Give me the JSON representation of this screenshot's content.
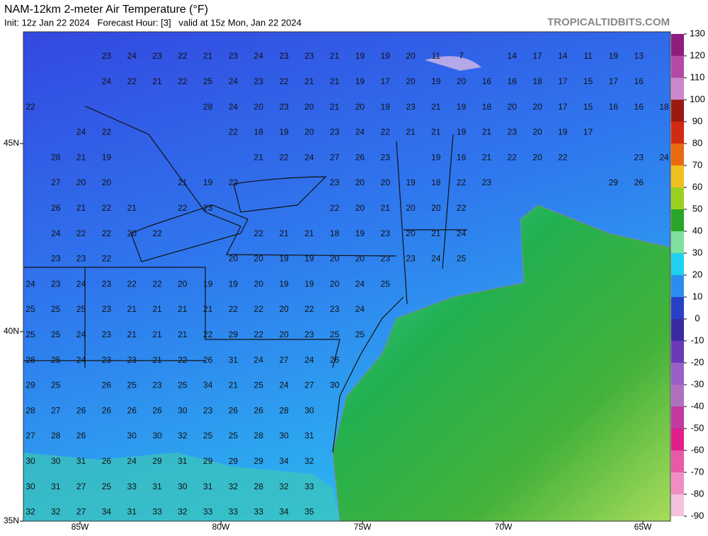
{
  "header": {
    "title": "NAM-12km 2-meter Air Temperature (°F)",
    "subtitle": "Init: 12z Jan 22 2024   Forecast Hour: [3]   valid at 15z Mon, Jan 22 2024",
    "site": "TROPICALTIDBITS.COM"
  },
  "map": {
    "lon_labels": [
      "85W",
      "80W",
      "75W",
      "70W",
      "65W"
    ],
    "lat_labels": [
      "45N",
      "40N",
      "35N"
    ],
    "rows": [
      [
        null,
        null,
        null,
        23,
        24,
        23,
        22,
        21,
        23,
        24,
        23,
        23,
        21,
        19,
        19,
        20,
        11,
        7,
        null,
        14,
        17,
        14,
        11,
        19,
        13,
        null
      ],
      [
        null,
        null,
        null,
        24,
        22,
        21,
        22,
        25,
        24,
        23,
        22,
        21,
        21,
        19,
        17,
        20,
        19,
        20,
        16,
        16,
        18,
        17,
        15,
        17,
        16,
        null
      ],
      [
        22,
        null,
        null,
        null,
        null,
        null,
        null,
        28,
        24,
        20,
        23,
        20,
        21,
        20,
        19,
        23,
        21,
        19,
        18,
        20,
        20,
        17,
        15,
        16,
        16,
        18
      ],
      [
        null,
        null,
        24,
        22,
        null,
        null,
        null,
        null,
        22,
        18,
        19,
        20,
        23,
        24,
        22,
        21,
        21,
        19,
        21,
        23,
        20,
        19,
        17,
        null,
        null,
        null
      ],
      [
        null,
        28,
        21,
        19,
        null,
        null,
        null,
        null,
        null,
        21,
        22,
        24,
        27,
        26,
        23,
        null,
        19,
        16,
        21,
        22,
        20,
        22,
        null,
        null,
        23,
        24
      ],
      [
        null,
        27,
        20,
        20,
        null,
        null,
        21,
        19,
        23,
        null,
        null,
        null,
        23,
        20,
        20,
        19,
        18,
        22,
        23,
        null,
        null,
        null,
        null,
        29,
        26,
        null
      ],
      [
        null,
        26,
        21,
        22,
        21,
        null,
        22,
        23,
        null,
        null,
        null,
        null,
        22,
        20,
        21,
        20,
        20,
        22,
        null,
        null,
        null,
        null,
        null,
        null,
        null,
        null
      ],
      [
        null,
        24,
        22,
        22,
        20,
        22,
        null,
        null,
        null,
        22,
        21,
        21,
        18,
        19,
        23,
        20,
        21,
        24,
        null,
        null,
        null,
        null,
        null,
        null,
        null,
        null
      ],
      [
        null,
        23,
        23,
        22,
        null,
        null,
        null,
        null,
        20,
        20,
        19,
        19,
        20,
        20,
        23,
        23,
        24,
        25,
        null,
        null,
        null,
        null,
        null,
        null,
        null,
        null
      ],
      [
        24,
        23,
        24,
        23,
        22,
        22,
        20,
        19,
        19,
        20,
        19,
        19,
        20,
        24,
        25,
        null,
        null,
        null,
        null,
        null,
        null,
        null,
        null,
        null,
        null,
        null
      ],
      [
        25,
        25,
        25,
        23,
        21,
        21,
        21,
        21,
        22,
        22,
        20,
        22,
        23,
        24,
        null,
        null,
        null,
        null,
        null,
        null,
        null,
        null,
        null,
        null,
        null,
        null
      ],
      [
        25,
        25,
        24,
        23,
        21,
        21,
        21,
        22,
        29,
        22,
        20,
        23,
        25,
        25,
        null,
        null,
        null,
        null,
        null,
        null,
        null,
        null,
        null,
        null,
        null,
        null
      ],
      [
        28,
        25,
        24,
        23,
        23,
        21,
        22,
        26,
        31,
        24,
        27,
        24,
        26,
        null,
        null,
        null,
        null,
        null,
        null,
        null,
        null,
        null,
        null,
        null,
        null,
        null
      ],
      [
        29,
        25,
        null,
        26,
        25,
        23,
        25,
        34,
        21,
        25,
        24,
        27,
        30,
        null,
        null,
        null,
        null,
        null,
        null,
        null,
        null,
        null,
        null,
        null,
        null,
        null
      ],
      [
        28,
        27,
        26,
        26,
        26,
        26,
        30,
        23,
        26,
        26,
        28,
        30,
        null,
        null,
        null,
        null,
        null,
        null,
        null,
        null,
        null,
        null,
        null,
        null,
        null,
        null
      ],
      [
        27,
        28,
        26,
        null,
        30,
        30,
        32,
        25,
        25,
        28,
        30,
        31,
        null,
        null,
        null,
        null,
        null,
        null,
        null,
        null,
        null,
        null,
        null,
        null,
        null,
        null
      ],
      [
        30,
        30,
        31,
        26,
        24,
        29,
        31,
        29,
        29,
        29,
        34,
        32,
        null,
        null,
        null,
        null,
        null,
        null,
        null,
        null,
        null,
        null,
        null,
        null,
        null,
        null
      ],
      [
        30,
        31,
        27,
        25,
        33,
        31,
        30,
        31,
        32,
        28,
        32,
        33,
        null,
        null,
        null,
        null,
        null,
        null,
        null,
        null,
        null,
        null,
        null,
        null,
        null,
        null
      ],
      [
        32,
        32,
        27,
        34,
        31,
        33,
        32,
        33,
        33,
        33,
        34,
        35,
        null,
        null,
        null,
        null,
        null,
        null,
        null,
        null,
        null,
        null,
        null,
        null,
        null,
        null
      ]
    ]
  },
  "colorbar": {
    "ticks": [
      130,
      120,
      110,
      100,
      90,
      80,
      70,
      60,
      50,
      40,
      30,
      20,
      10,
      0,
      -10,
      -20,
      -30,
      -40,
      -50,
      -60,
      -70,
      -80,
      -90
    ],
    "colors": [
      "#8e1d7e",
      "#b44aa6",
      "#cc86cb",
      "#9a1a10",
      "#d22a10",
      "#e86a10",
      "#f0c020",
      "#9cd020",
      "#2aa52a",
      "#7fe0a0",
      "#20d0f0",
      "#2a8ef0",
      "#2840c8",
      "#3a2aa0",
      "#6a3ab8",
      "#9a60c8",
      "#b070c0",
      "#c03aa0",
      "#e0208a",
      "#e85aa8",
      "#f08ec4",
      "#f4c0dc"
    ]
  }
}
